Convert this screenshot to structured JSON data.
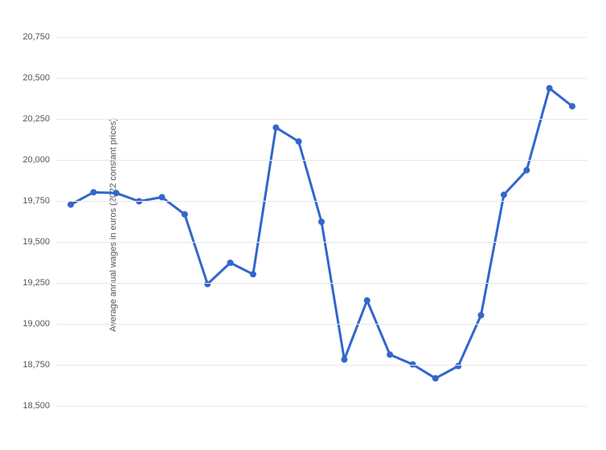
{
  "wages_chart": {
    "type": "line",
    "ylabel": "Average annual wages in euros (2022 constant prices)",
    "label_fontsize": 11,
    "label_color": "#555555",
    "ylim": [
      18375,
      20875
    ],
    "ytick_step": 250,
    "yticks": [
      18500,
      18750,
      19000,
      19250,
      19500,
      19750,
      20000,
      20250,
      20500,
      20750
    ],
    "ytick_labels": [
      "18,500",
      "18,750",
      "19,000",
      "19,250",
      "19,500",
      "19,750",
      "20,000",
      "20,250",
      "20,500",
      "20,750"
    ],
    "values": [
      19725,
      19800,
      19795,
      19745,
      19770,
      19665,
      19240,
      19370,
      19300,
      20195,
      20110,
      19620,
      18780,
      19140,
      18810,
      18750,
      18665,
      18740,
      19050,
      19785,
      19935,
      20435,
      20325
    ],
    "line_color": "#3366cc",
    "line_width": 3,
    "marker_style": "circle",
    "marker_size": 4,
    "marker_color": "#3366cc",
    "background_color": "#ffffff",
    "grid_color": "#e8e8e8",
    "tick_fontsize": 11,
    "tick_color": "#555555"
  }
}
